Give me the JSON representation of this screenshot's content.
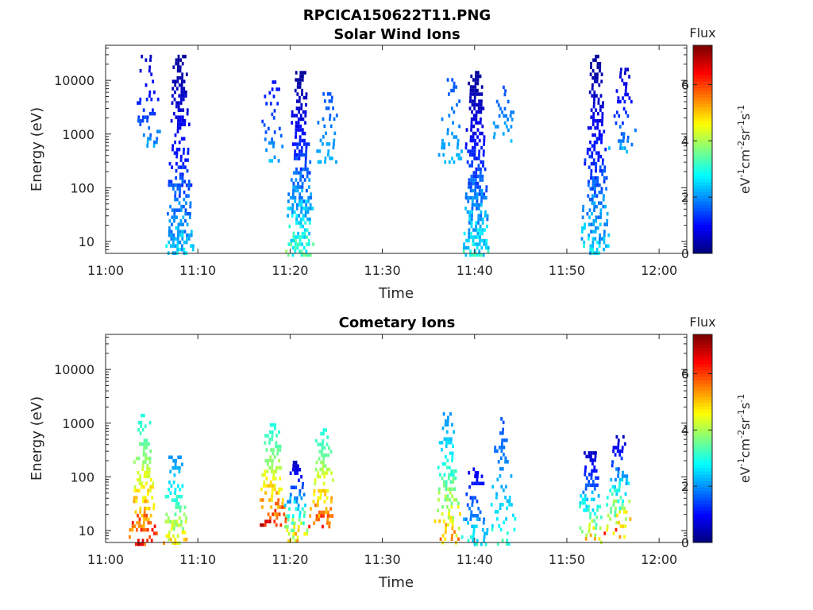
{
  "figure": {
    "title": "RPCICA150622T11.PNG"
  },
  "colormap": "jet",
  "chart_data": [
    {
      "type": "heatmap",
      "title": "Solar Wind Ions",
      "xlabel": "Time",
      "ylabel": "Energy (eV)",
      "yscale": "log",
      "ylim": [
        6,
        45000
      ],
      "xlim": [
        "11:00",
        "12:03"
      ],
      "xticks": [
        "11:00",
        "11:10",
        "11:20",
        "11:30",
        "11:40",
        "11:50",
        "12:00"
      ],
      "yticks": [
        "10",
        "100",
        "1000",
        "10000"
      ],
      "colorbar": {
        "title": "Flux",
        "label": "eV-1cm-2sr-1s-1",
        "ticks": [
          "0",
          "2",
          "4",
          "6"
        ],
        "range": [
          0,
          7.4
        ]
      },
      "bursts": [
        {
          "t": "11:04.5",
          "emin": 600,
          "emax": 30000,
          "fmin": 0.5,
          "fmax": 2.5,
          "density": 0.3
        },
        {
          "t": "11:08",
          "emin": 6,
          "emax": 30000,
          "fmin": 0.2,
          "fmax": 3.0,
          "density": 0.65
        },
        {
          "t": "11:18",
          "emin": 300,
          "emax": 10000,
          "fmin": 1.0,
          "fmax": 2.5,
          "density": 0.25
        },
        {
          "t": "11:21",
          "emin": 6,
          "emax": 15000,
          "fmin": 0.2,
          "fmax": 4.0,
          "density": 0.7
        },
        {
          "t": "11:24",
          "emin": 300,
          "emax": 7000,
          "fmin": 1.5,
          "fmax": 2.5,
          "density": 0.3
        },
        {
          "t": "11:37.5",
          "emin": 300,
          "emax": 15000,
          "fmin": 1.5,
          "fmax": 2.5,
          "density": 0.25
        },
        {
          "t": "11:40",
          "emin": 6,
          "emax": 15000,
          "fmin": 0.2,
          "fmax": 3.5,
          "density": 0.7
        },
        {
          "t": "11:43",
          "emin": 800,
          "emax": 8000,
          "fmin": 1.5,
          "fmax": 2.5,
          "density": 0.3
        },
        {
          "t": "11:53",
          "emin": 6,
          "emax": 30000,
          "fmin": 0.2,
          "fmax": 3.2,
          "density": 0.65
        },
        {
          "t": "11:56",
          "emin": 500,
          "emax": 20000,
          "fmin": 0.5,
          "fmax": 2.5,
          "density": 0.3
        }
      ]
    },
    {
      "type": "heatmap",
      "title": "Cometary Ions",
      "xlabel": "Time",
      "ylabel": "Energy (eV)",
      "yscale": "log",
      "ylim": [
        6,
        45000
      ],
      "xlim": [
        "11:00",
        "12:03"
      ],
      "xticks": [
        "11:00",
        "11:10",
        "11:20",
        "11:30",
        "11:40",
        "11:50",
        "12:00"
      ],
      "yticks": [
        "10",
        "100",
        "1000",
        "10000"
      ],
      "colorbar": {
        "title": "Flux",
        "label": "eV-1cm-2sr-1s-1",
        "ticks": [
          "0",
          "2",
          "4",
          "6"
        ],
        "range": [
          0,
          7.4
        ]
      },
      "bursts": [
        {
          "t": "11:04",
          "emin": 6,
          "emax": 1500,
          "fmin": 3.0,
          "fmax": 7.2,
          "density": 0.55
        },
        {
          "t": "11:07.5",
          "emin": 6,
          "emax": 250,
          "fmin": 2.0,
          "fmax": 5.5,
          "density": 0.5
        },
        {
          "t": "11:18",
          "emin": 12,
          "emax": 1000,
          "fmin": 3.0,
          "fmax": 7.3,
          "density": 0.6
        },
        {
          "t": "11:20.5",
          "emin": 6,
          "emax": 200,
          "fmin": 0.5,
          "fmax": 6.5,
          "density": 0.55
        },
        {
          "t": "11:23.5",
          "emin": 12,
          "emax": 800,
          "fmin": 3.0,
          "fmax": 7.0,
          "density": 0.55
        },
        {
          "t": "11:37",
          "emin": 6,
          "emax": 1600,
          "fmin": 2.0,
          "fmax": 6.2,
          "density": 0.45
        },
        {
          "t": "11:40",
          "emin": 6,
          "emax": 150,
          "fmin": 0.8,
          "fmax": 3.5,
          "density": 0.4
        },
        {
          "t": "11:43",
          "emin": 6,
          "emax": 1300,
          "fmin": 1.5,
          "fmax": 3.5,
          "density": 0.3
        },
        {
          "t": "11:52.5",
          "emin": 6,
          "emax": 300,
          "fmin": 0.5,
          "fmax": 6.0,
          "density": 0.45
        },
        {
          "t": "11:55.5",
          "emin": 8,
          "emax": 600,
          "fmin": 0.5,
          "fmax": 7.0,
          "density": 0.5
        }
      ]
    }
  ]
}
